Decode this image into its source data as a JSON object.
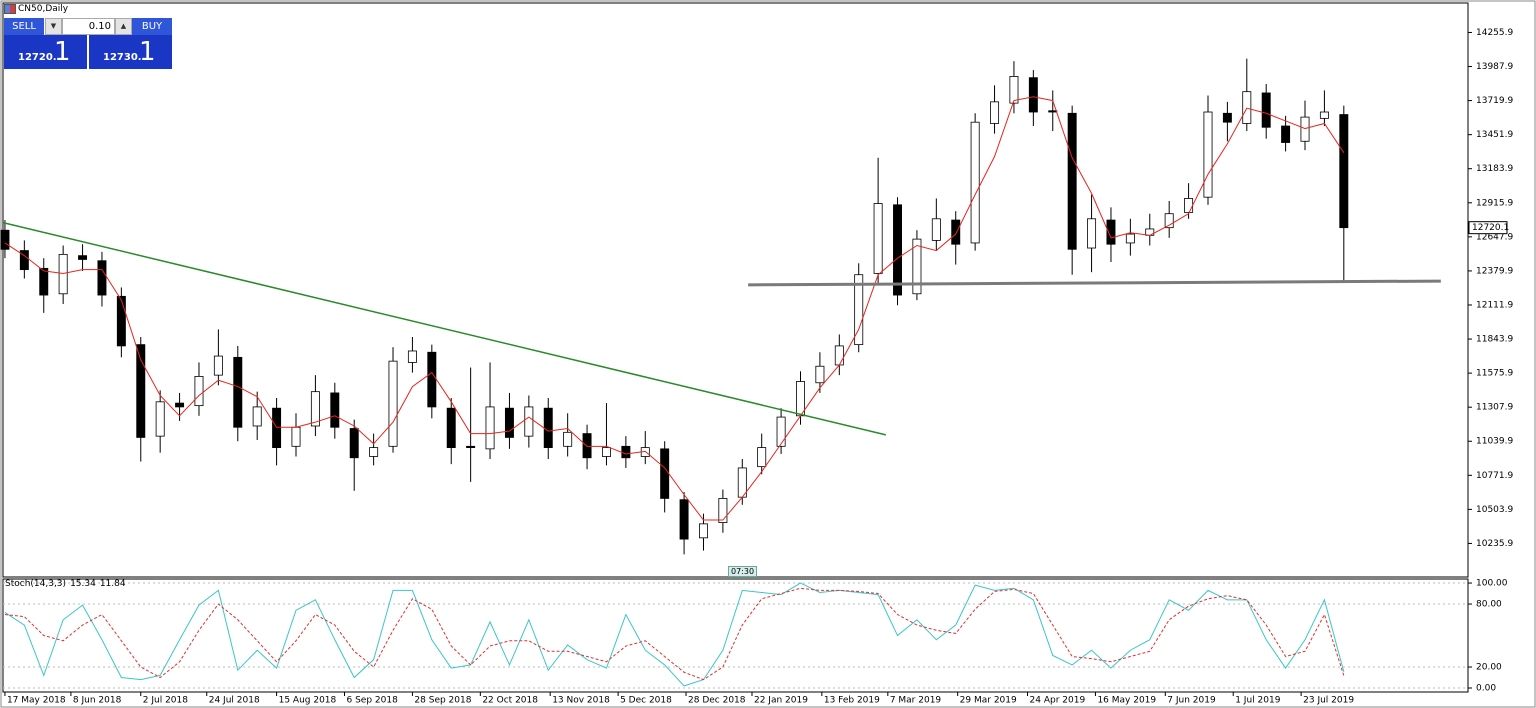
{
  "window": {
    "symbol": "CN50,Daily"
  },
  "trade_panel": {
    "sell": "SELL",
    "buy": "BUY",
    "lot": "0.10",
    "bid": "12720.",
    "bid_pip": "1",
    "ask": "12730.",
    "ask_pip": "1"
  },
  "time_marker": "07:30",
  "chart_data": [
    {
      "type": "candlestick",
      "x": [
        0,
        1,
        2,
        3,
        4,
        5,
        6,
        7,
        8,
        9,
        10,
        11,
        12,
        13,
        14,
        15,
        16,
        17,
        18,
        19,
        20,
        21,
        22,
        23,
        24,
        25,
        26,
        27,
        28,
        29,
        30,
        31,
        32,
        33,
        34,
        35,
        36,
        37,
        38,
        39,
        40,
        41,
        42,
        43,
        44,
        45,
        46,
        47,
        48,
        49,
        50,
        51,
        52,
        53,
        54,
        55,
        56,
        57,
        58,
        59,
        60,
        61,
        62,
        63,
        64,
        65,
        66,
        67,
        68,
        69
      ],
      "open": [
        12700,
        12540,
        12400,
        12200,
        12500,
        12460,
        12180,
        11800,
        11080,
        11340,
        11320,
        11560,
        11700,
        11160,
        11300,
        11000,
        11160,
        11420,
        11140,
        10920,
        11000,
        11660,
        11740,
        11300,
        11000,
        10980,
        11300,
        11080,
        11300,
        11000,
        11100,
        10920,
        11000,
        10920,
        10980,
        10580,
        10280,
        10400,
        10600,
        10840,
        11000,
        11240,
        11500,
        11640,
        11800,
        12360,
        12900,
        12200,
        12620,
        12780,
        12600,
        13540,
        13700,
        13900,
        13640,
        13620,
        12560,
        12780,
        12600,
        12660,
        12720,
        12840,
        12960,
        13620,
        13540,
        13780,
        13520,
        13400,
        13580,
        13610
      ],
      "high": [
        12780,
        12620,
        12480,
        12580,
        12590,
        12530,
        12250,
        11860,
        11440,
        11420,
        11660,
        11920,
        11790,
        11430,
        11380,
        11260,
        11560,
        11500,
        11210,
        11100,
        11780,
        11860,
        11800,
        11380,
        11620,
        11660,
        11420,
        11400,
        11380,
        11260,
        11170,
        11340,
        11080,
        11120,
        11040,
        10640,
        10470,
        10660,
        10900,
        11100,
        11300,
        11590,
        11740,
        11880,
        12440,
        13270,
        12960,
        12700,
        12950,
        12850,
        13620,
        13840,
        14030,
        13960,
        13800,
        13680,
        12980,
        12880,
        12790,
        12830,
        12930,
        13070,
        13760,
        13710,
        14050,
        13850,
        13600,
        13720,
        13800,
        13680
      ],
      "low": [
        12480,
        12320,
        12050,
        12120,
        12380,
        12100,
        11700,
        10880,
        10950,
        11200,
        11240,
        11480,
        11040,
        11050,
        10850,
        10920,
        11080,
        11060,
        10650,
        10850,
        10950,
        11580,
        11220,
        10860,
        10720,
        10900,
        10980,
        10990,
        10900,
        10920,
        10820,
        10850,
        10830,
        10860,
        10480,
        10150,
        10180,
        10320,
        10540,
        10780,
        10940,
        11170,
        11420,
        11560,
        11740,
        12280,
        12110,
        12150,
        12540,
        12430,
        12540,
        13460,
        13620,
        13520,
        13480,
        12350,
        12370,
        12450,
        12500,
        12580,
        12640,
        12790,
        12900,
        13400,
        13480,
        13420,
        13320,
        13330,
        13520,
        12300
      ],
      "close": [
        12550,
        12390,
        12190,
        12510,
        12470,
        12190,
        11790,
        11070,
        11350,
        11310,
        11550,
        11710,
        11150,
        11310,
        10990,
        11150,
        11430,
        11150,
        10910,
        10990,
        11670,
        11750,
        11310,
        10990,
        10990,
        11310,
        11070,
        11310,
        10990,
        11110,
        10910,
        10990,
        10910,
        10990,
        10590,
        10270,
        10390,
        10590,
        10830,
        10990,
        11230,
        11510,
        11630,
        11790,
        12350,
        12910,
        12190,
        12630,
        12790,
        12590,
        13550,
        13710,
        13910,
        13630,
        13630,
        12550,
        12790,
        12590,
        12670,
        12710,
        12830,
        12950,
        13630,
        13550,
        13790,
        13510,
        13390,
        13590,
        13630,
        12720.1
      ],
      "up_color": "#ffffff",
      "down_color": "#000000",
      "edge_color": "#000000",
      "overlay": {
        "color": "#e8241c",
        "values": [
          12600,
          12500,
          12380,
          12360,
          12390,
          12390,
          12150,
          11680,
          11400,
          11240,
          11400,
          11520,
          11470,
          11390,
          11150,
          11150,
          11190,
          11240,
          11160,
          11020,
          11190,
          11470,
          11580,
          11350,
          11100,
          11100,
          11120,
          11230,
          11120,
          11140,
          11000,
          11000,
          10940,
          10960,
          10830,
          10620,
          10420,
          10420,
          10600,
          10800,
          11020,
          11240,
          11460,
          11640,
          11920,
          12350,
          12480,
          12580,
          12540,
          12670,
          12980,
          13280,
          13720,
          13750,
          13720,
          13270,
          12990,
          12640,
          12680,
          12660,
          12740,
          12830,
          13140,
          13380,
          13660,
          13620,
          13560,
          13500,
          13540,
          13310
        ]
      },
      "trendlines": [
        {
          "color": "#2a8a2a",
          "x": [
            -0.1,
            45.4
          ],
          "y": [
            12760,
            11090
          ]
        },
        {
          "color": "#7a7a7a",
          "x": [
            38.3,
            74.0
          ],
          "y": [
            12270,
            12300
          ]
        }
      ],
      "xlim": [
        -0.1,
        75.4
      ],
      "xticks": [
        {
          "value": 0,
          "label": "17 May 2018"
        },
        {
          "value": 3.4,
          "label": "8 Jun 2018"
        },
        {
          "value": 7.0,
          "label": "2 Jul 2018"
        },
        {
          "value": 10.4,
          "label": "24 Jul 2018"
        },
        {
          "value": 14.0,
          "label": "15 Aug 2018"
        },
        {
          "value": 17.5,
          "label": "6 Sep 2018"
        },
        {
          "value": 21.0,
          "label": "28 Sep 2018"
        },
        {
          "value": 24.5,
          "label": "22 Oct 2018"
        },
        {
          "value": 28.1,
          "label": "13 Nov 2018"
        },
        {
          "value": 31.6,
          "label": "5 Dec 2018"
        },
        {
          "value": 35.1,
          "label": "28 Dec 2018"
        },
        {
          "value": 38.5,
          "label": "22 Jan 2019"
        },
        {
          "value": 42.1,
          "label": "13 Feb 2019"
        },
        {
          "value": 45.5,
          "label": "7 Mar 2019"
        },
        {
          "value": 49.1,
          "label": "29 Mar 2019"
        },
        {
          "value": 52.7,
          "label": "24 Apr 2019"
        },
        {
          "value": 56.2,
          "label": "16 May 2019"
        },
        {
          "value": 59.8,
          "label": "7 Jun 2019"
        },
        {
          "value": 63.3,
          "label": "1 Jul 2019"
        },
        {
          "value": 66.8,
          "label": "23 Jul 2019"
        }
      ],
      "ylim": [
        9971.9,
        14471.9
      ],
      "yticks": [
        14255.9,
        13987.9,
        13719.9,
        13451.9,
        13183.9,
        12915.9,
        12647.9,
        12379.9,
        12111.9,
        11843.9,
        11575.9,
        11307.9,
        11039.9,
        10771.9,
        10503.9,
        10235.9
      ],
      "grid": false
    },
    {
      "type": "line",
      "title": "Stoch(14,3,3)",
      "series": [
        {
          "color": "#3cc6c6",
          "dashed": false,
          "values": [
            72,
            60,
            12,
            65,
            79,
            46,
            10,
            8,
            12,
            46,
            79,
            93,
            17,
            36,
            19,
            74,
            84,
            46,
            10,
            27,
            93,
            93,
            46,
            19,
            22,
            63,
            22,
            65,
            17,
            41,
            27,
            19,
            70,
            36,
            22,
            2,
            8,
            36,
            93,
            91,
            89,
            100,
            91,
            93,
            91,
            89,
            50,
            65,
            46,
            60,
            98,
            93,
            95,
            84,
            31,
            22,
            36,
            19,
            36,
            46,
            84,
            74,
            93,
            84,
            84,
            46,
            19,
            46,
            84,
            15.34
          ]
        },
        {
          "color": "#e03030",
          "dashed": true,
          "values": [
            70,
            68,
            50,
            45,
            60,
            70,
            45,
            20,
            10,
            25,
            55,
            80,
            65,
            45,
            25,
            45,
            70,
            60,
            35,
            20,
            55,
            85,
            75,
            40,
            22,
            40,
            45,
            45,
            35,
            35,
            30,
            25,
            40,
            45,
            30,
            15,
            8,
            20,
            60,
            85,
            90,
            95,
            93,
            93,
            92,
            90,
            70,
            60,
            55,
            52,
            75,
            92,
            94,
            90,
            60,
            30,
            28,
            25,
            30,
            35,
            65,
            78,
            85,
            88,
            84,
            60,
            30,
            35,
            70,
            11.84
          ]
        }
      ],
      "ylim": [
        -3.8,
        102.9
      ],
      "yticks": [
        {
          "value": 100,
          "label": "100.00"
        },
        {
          "value": 80,
          "label": "80.00"
        },
        {
          "value": 20,
          "label": "20.00"
        },
        {
          "value": 0,
          "label": "0.00"
        }
      ],
      "grid": true
    }
  ]
}
